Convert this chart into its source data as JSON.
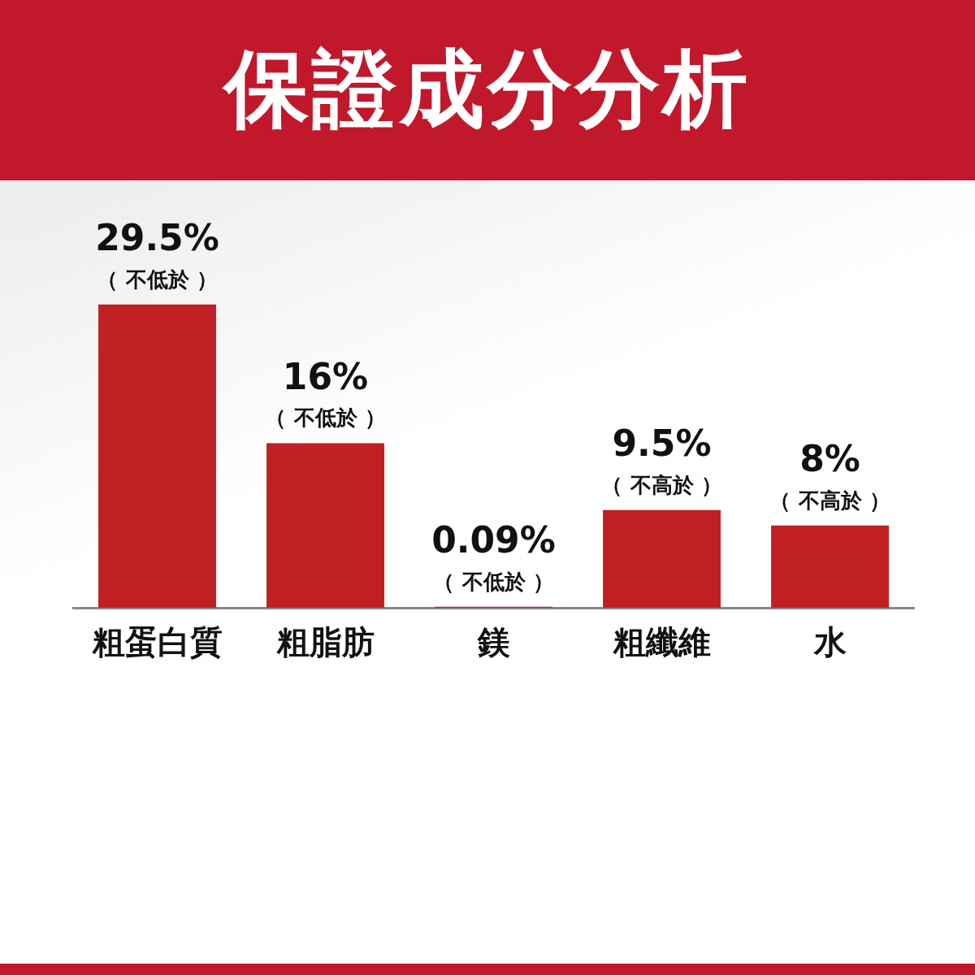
{
  "chart_data": {
    "type": "bar",
    "title": "保證成分分析",
    "categories": [
      "粗蛋白質",
      "粗脂肪",
      "鎂",
      "粗纖維",
      "水"
    ],
    "values": [
      29.5,
      16,
      0.09,
      9.5,
      8
    ],
    "value_labels": [
      "29.5%",
      "16%",
      "0.09%",
      "9.5%",
      "8%"
    ],
    "color": "#c01f24",
    "annotations": [
      {
        "text": "（ 不低於 ）",
        "x": "粗蛋白質",
        "y": 29.5
      },
      {
        "text": "（ 不低於 ）",
        "x": "粗脂肪",
        "y": 16
      },
      {
        "text": "（ 不低於 ）",
        "x": "鎂",
        "y": 0.09
      },
      {
        "text": "（ 不高於 ）",
        "x": "粗纖維",
        "y": 9.5
      },
      {
        "text": "（ 不高於 ）",
        "x": "水",
        "y": 8
      }
    ]
  }
}
